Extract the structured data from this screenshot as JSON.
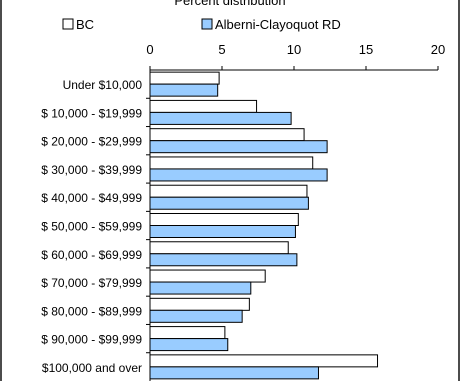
{
  "chart_data": {
    "type": "bar",
    "orientation": "horizontal",
    "title": "Percent distribution",
    "categories": [
      "Under $10,000",
      "$  10,000 - $19,999",
      "$  20,000 - $29,999",
      "$  30,000 - $39,999",
      "$  40,000 - $49,999",
      "$  50,000 - $59,999",
      "$  60,000 - $69,999",
      "$  70,000 - $79,999",
      "$  80,000 - $89,999",
      "$  90,000 - $99,999",
      "$100,000 and over"
    ],
    "series": [
      {
        "name": "BC",
        "color": "#ffffff",
        "values": [
          4.8,
          7.4,
          10.7,
          11.3,
          10.9,
          10.3,
          9.6,
          8.0,
          6.9,
          5.2,
          15.8
        ]
      },
      {
        "name": "Alberni-Clayoquot RD",
        "color": "#99ccff",
        "values": [
          4.7,
          9.8,
          12.3,
          12.3,
          11.0,
          10.1,
          10.2,
          7.0,
          6.4,
          5.4,
          11.7
        ]
      }
    ],
    "xlim": [
      0,
      20
    ],
    "x_ticks": [
      "0",
      "5",
      "10",
      "15",
      "20"
    ],
    "x_axis_position": "top",
    "grid": false,
    "legend_position": "top"
  }
}
